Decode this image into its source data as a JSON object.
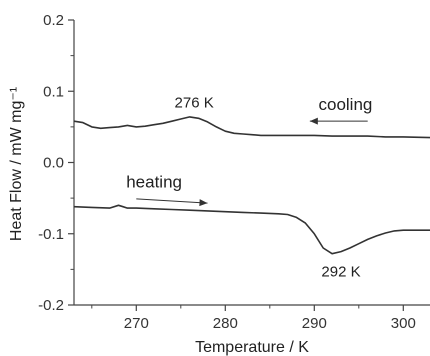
{
  "chart_data": {
    "type": "line",
    "xlabel": "Temperature / K",
    "ylabel": "Heat Flow / mW mg⁻¹",
    "xlim": [
      263,
      303
    ],
    "ylim": [
      -0.2,
      0.2
    ],
    "x_ticks": [
      270,
      280,
      290,
      300
    ],
    "y_ticks": [
      0.2,
      0.1,
      0.0,
      -0.1,
      -0.2
    ],
    "y_tick_labels": [
      "0.2",
      "0.1",
      "0.0",
      "-0.1",
      "-0.2"
    ],
    "grid": false,
    "series": [
      {
        "color": "#333333",
        "x": [
          263,
          264,
          265,
          266,
          267,
          268,
          269,
          270,
          271,
          272,
          273,
          274,
          275,
          276,
          277,
          278,
          279,
          280,
          281,
          282,
          283,
          284,
          285,
          286,
          287,
          288,
          290,
          292,
          294,
          296,
          298,
          300,
          303
        ],
        "y": [
          0.058,
          0.056,
          0.05,
          0.048,
          0.049,
          0.05,
          0.052,
          0.05,
          0.051,
          0.053,
          0.055,
          0.058,
          0.061,
          0.064,
          0.062,
          0.057,
          0.05,
          0.044,
          0.041,
          0.04,
          0.039,
          0.038,
          0.038,
          0.038,
          0.038,
          0.038,
          0.038,
          0.037,
          0.037,
          0.037,
          0.036,
          0.036,
          0.035
        ]
      },
      {
        "color": "#333333",
        "x": [
          263,
          265,
          267,
          268,
          268.5,
          269,
          270,
          272,
          274,
          276,
          278,
          280,
          282,
          284,
          286,
          287,
          288,
          289,
          290,
          291,
          292,
          293,
          294,
          295,
          296,
          297,
          298,
          299,
          300,
          301,
          302,
          303
        ],
        "y": [
          -0.062,
          -0.063,
          -0.064,
          -0.06,
          -0.062,
          -0.064,
          -0.064,
          -0.065,
          -0.066,
          -0.067,
          -0.068,
          -0.069,
          -0.07,
          -0.071,
          -0.072,
          -0.073,
          -0.077,
          -0.085,
          -0.1,
          -0.12,
          -0.128,
          -0.125,
          -0.12,
          -0.114,
          -0.108,
          -0.103,
          -0.099,
          -0.096,
          -0.095,
          -0.095,
          -0.095,
          -0.095
        ]
      }
    ],
    "annotations": [
      {
        "text": "276 K",
        "x": 276.5,
        "y": 0.077
      },
      {
        "text": "292 K",
        "x": 293,
        "y": -0.16
      },
      {
        "text": "cooling",
        "x": 293.5,
        "y": 0.074
      },
      {
        "text": "heating",
        "x": 272,
        "y": -0.035
      }
    ],
    "arrows": [
      {
        "direction": "left",
        "from": [
          296,
          0.058
        ],
        "to": [
          289.5,
          0.058
        ]
      },
      {
        "direction": "right",
        "from": [
          270,
          -0.051
        ],
        "to": [
          278,
          -0.057
        ]
      }
    ]
  }
}
